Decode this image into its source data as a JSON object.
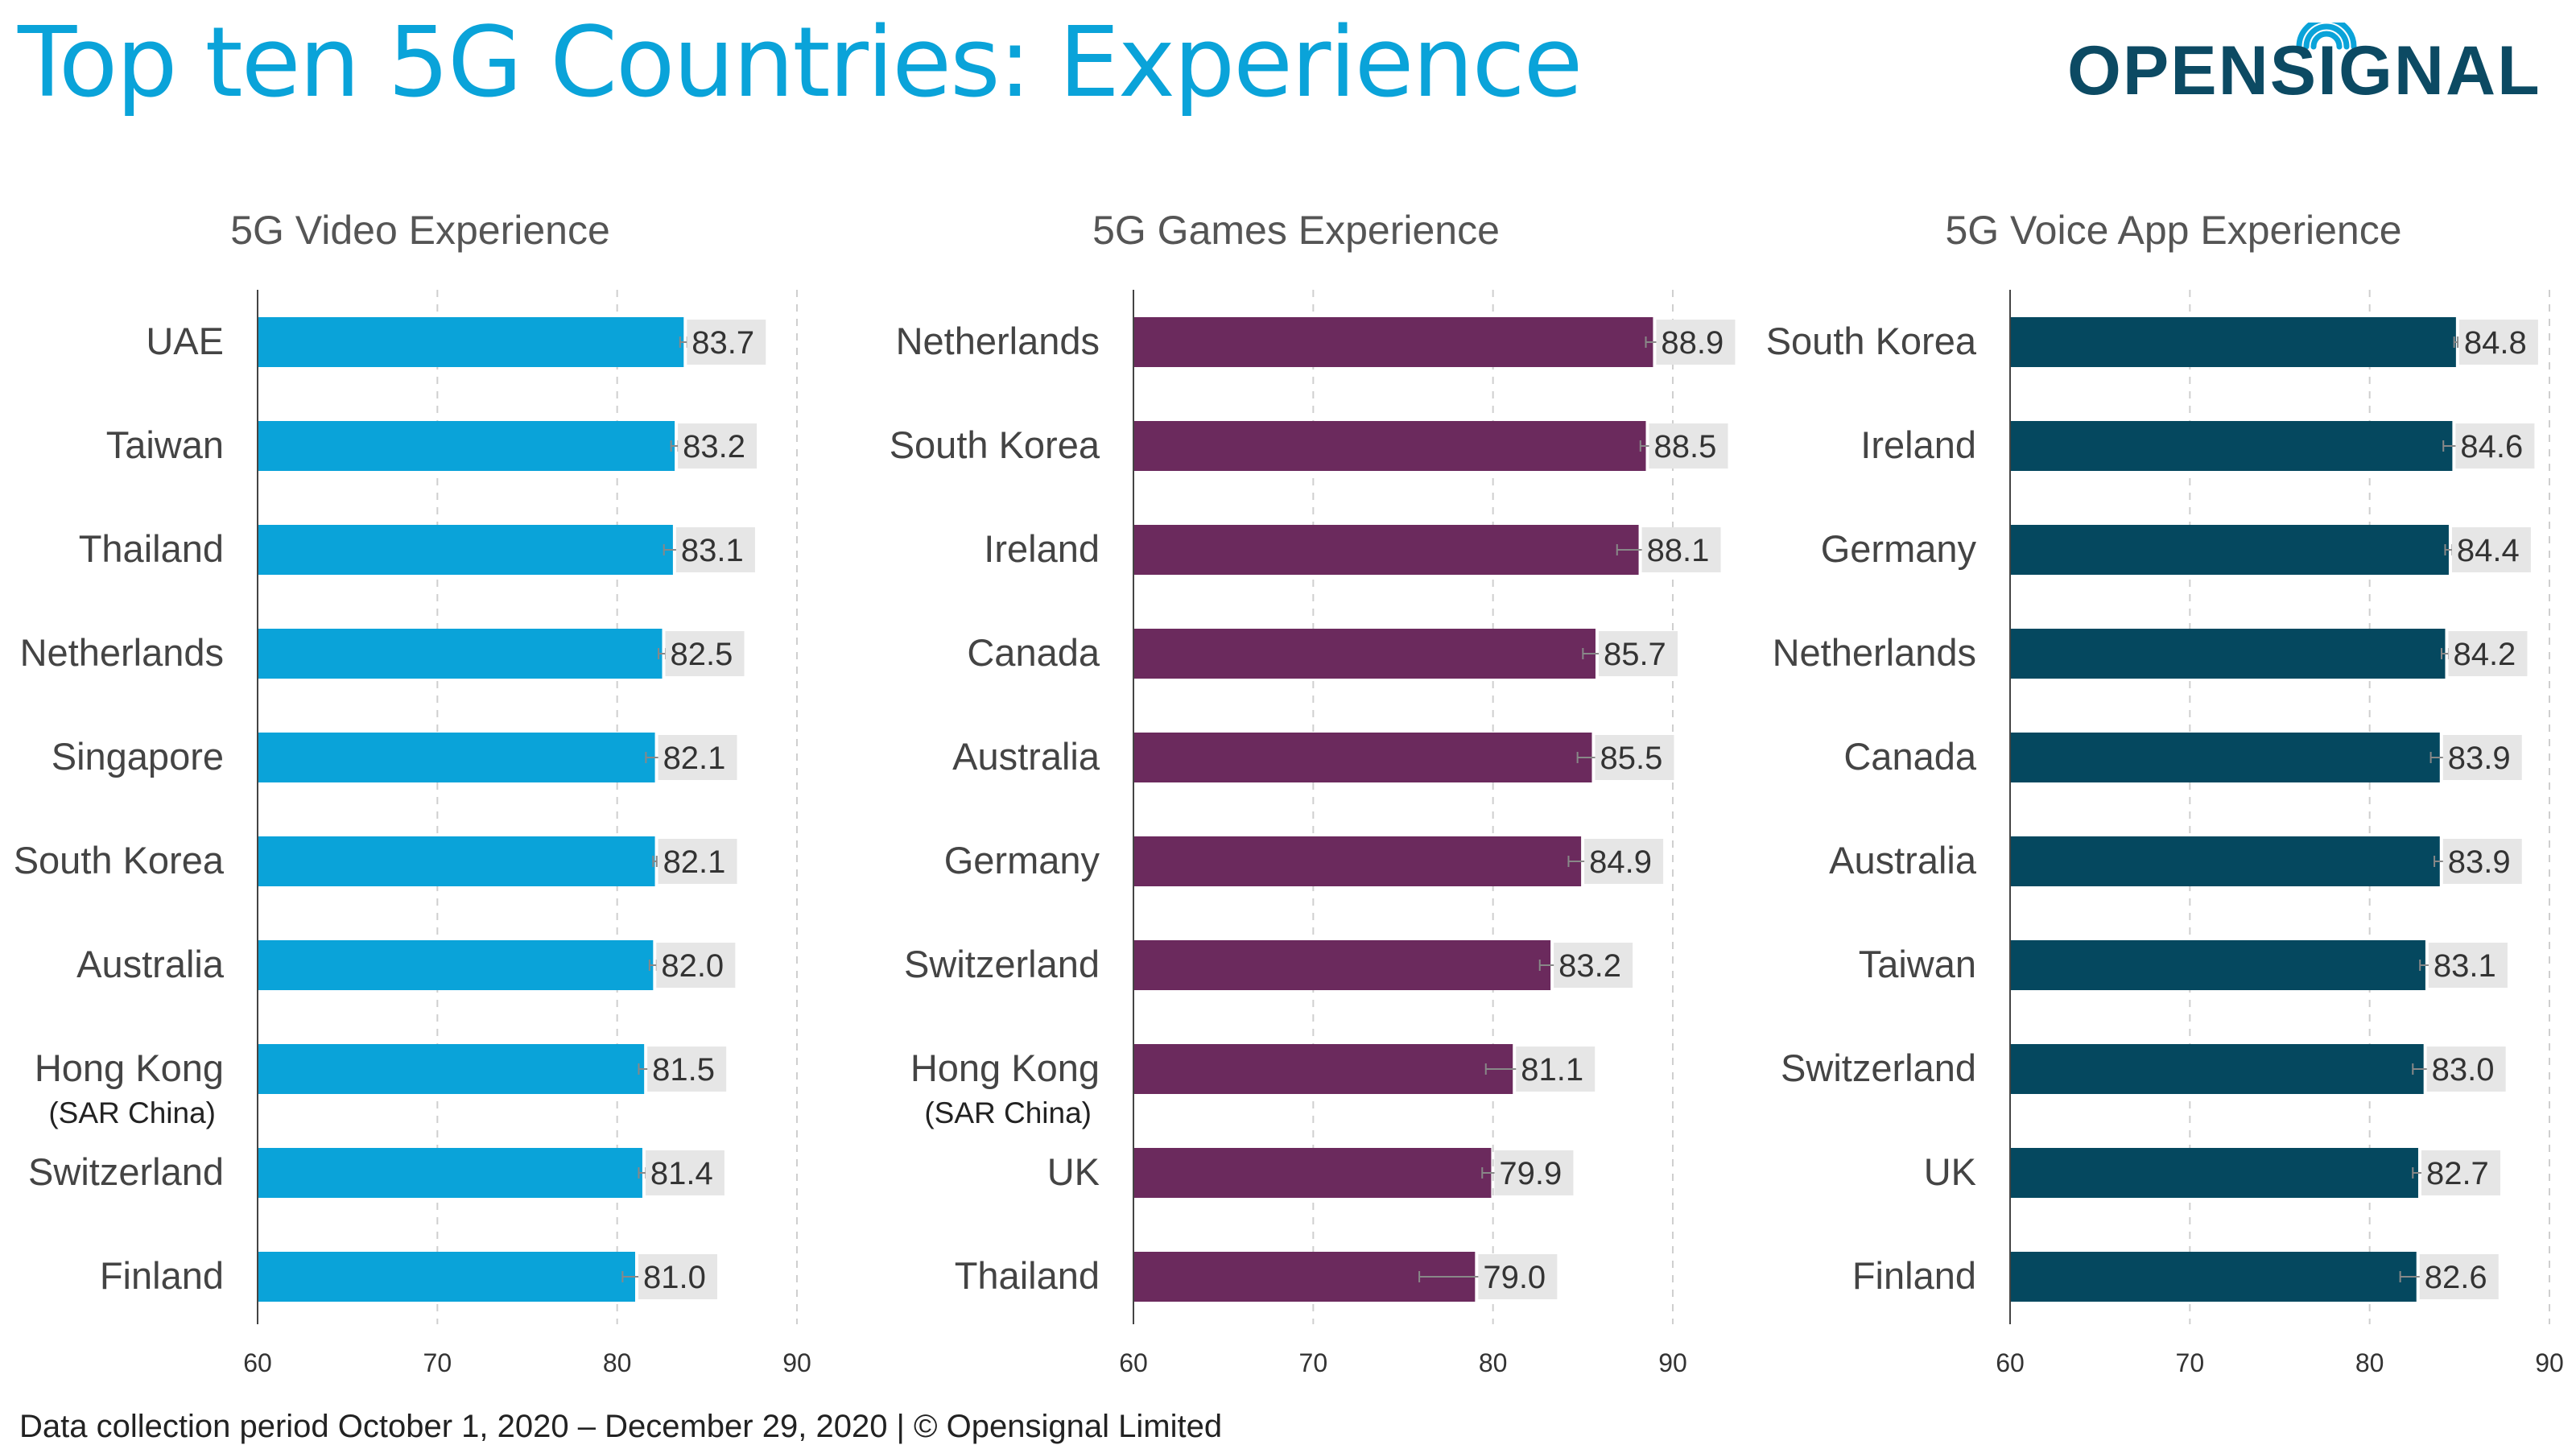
{
  "page": {
    "title": "Top ten 5G Countries: Experience",
    "footer": "Data collection period October 1, 2020 – December 29, 2020  |  © Opensignal Limited",
    "title_color": "#0aa3d9"
  },
  "logo": {
    "text": "OPENSIGNAL",
    "color": "#0c4a63",
    "icon": "wifi-signal-icon"
  },
  "chart_data": [
    {
      "type": "bar",
      "orientation": "horizontal",
      "title": "5G Video Experience",
      "categories": [
        "UAE",
        "Taiwan",
        "Thailand",
        "Netherlands",
        "Singapore",
        "South Korea",
        "Australia",
        "Hong Kong",
        "Switzerland",
        "Finland"
      ],
      "category_sublabels": [
        "",
        "",
        "",
        "",
        "",
        "",
        "",
        "(SAR China)",
        "",
        ""
      ],
      "values": [
        83.7,
        83.2,
        83.1,
        82.5,
        82.1,
        82.1,
        82.0,
        81.5,
        81.4,
        81.0
      ],
      "value_labels": [
        "83.7",
        "83.2",
        "83.1",
        "82.5",
        "82.1",
        "82.1",
        "82.0",
        "81.5",
        "81.4",
        "81.0"
      ],
      "ci_low": [
        83.5,
        83.0,
        82.6,
        82.3,
        81.6,
        82.0,
        81.8,
        81.2,
        81.2,
        80.3
      ],
      "ci_high": [
        83.9,
        83.4,
        83.6,
        82.7,
        82.6,
        82.2,
        82.2,
        81.8,
        81.6,
        81.7
      ],
      "color": "#0aa3d9",
      "xlim": [
        60,
        90
      ],
      "xticks": [
        "60",
        "70",
        "80",
        "90"
      ],
      "grid": true
    },
    {
      "type": "bar",
      "orientation": "horizontal",
      "title": "5G Games Experience",
      "categories": [
        "Netherlands",
        "South Korea",
        "Ireland",
        "Canada",
        "Australia",
        "Germany",
        "Switzerland",
        "Hong Kong",
        "UK",
        "Thailand"
      ],
      "category_sublabels": [
        "",
        "",
        "",
        "",
        "",
        "",
        "",
        "(SAR China)",
        "",
        ""
      ],
      "values": [
        88.9,
        88.5,
        88.1,
        85.7,
        85.5,
        84.9,
        83.2,
        81.1,
        79.9,
        79.0
      ],
      "value_labels": [
        "88.9",
        "88.5",
        "88.1",
        "85.7",
        "85.5",
        "84.9",
        "83.2",
        "81.1",
        "79.9",
        "79.0"
      ],
      "ci_low": [
        88.5,
        88.2,
        86.9,
        85.0,
        84.7,
        84.2,
        82.6,
        79.6,
        79.4,
        75.9
      ],
      "ci_high": [
        89.3,
        88.8,
        89.3,
        86.4,
        86.3,
        85.6,
        83.8,
        82.6,
        80.4,
        82.1
      ],
      "color": "#6b2a5d",
      "xlim": [
        60,
        90
      ],
      "xticks": [
        "60",
        "70",
        "80",
        "90"
      ],
      "grid": true
    },
    {
      "type": "bar",
      "orientation": "horizontal",
      "title": "5G Voice App Experience",
      "categories": [
        "South Korea",
        "Ireland",
        "Germany",
        "Netherlands",
        "Canada",
        "Australia",
        "Taiwan",
        "Switzerland",
        "UK",
        "Finland"
      ],
      "category_sublabels": [
        "",
        "",
        "",
        "",
        "",
        "",
        "",
        "",
        "",
        ""
      ],
      "values": [
        84.8,
        84.6,
        84.4,
        84.2,
        83.9,
        83.9,
        83.1,
        83.0,
        82.7,
        82.6
      ],
      "value_labels": [
        "84.8",
        "84.6",
        "84.4",
        "84.2",
        "83.9",
        "83.9",
        "83.1",
        "83.0",
        "82.7",
        "82.6"
      ],
      "ci_low": [
        84.7,
        84.1,
        84.2,
        84.0,
        83.4,
        83.6,
        82.8,
        82.4,
        82.4,
        81.7
      ],
      "ci_high": [
        84.9,
        85.1,
        84.6,
        84.4,
        84.4,
        84.2,
        83.4,
        83.6,
        83.0,
        83.5
      ],
      "color": "#05485f",
      "xlim": [
        60,
        90
      ],
      "xticks": [
        "60",
        "70",
        "80",
        "90"
      ],
      "grid": true
    }
  ]
}
